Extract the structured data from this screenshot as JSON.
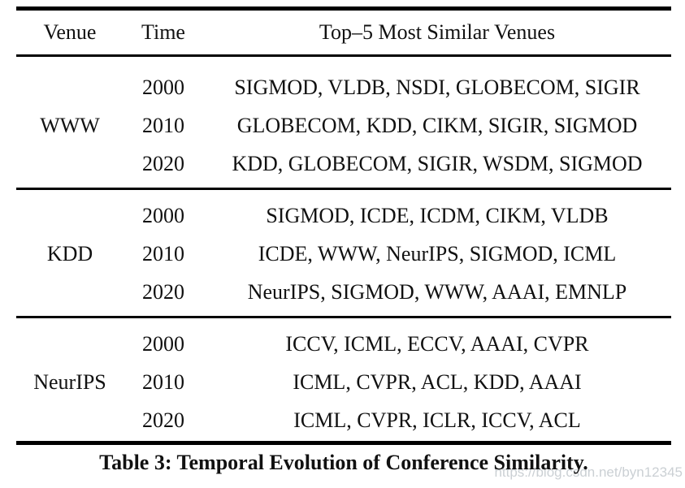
{
  "colors": {
    "background": "#ffffff",
    "text": "#111111",
    "rule": "#000000",
    "watermark": "#cbd0d4"
  },
  "table": {
    "headers": {
      "venue": "Venue",
      "time": "Time",
      "top5": "Top–5 Most Similar Venues"
    },
    "groups": [
      {
        "venue": "WWW",
        "rows": [
          {
            "time": "2000",
            "venues": "SIGMOD, VLDB, NSDI, GLOBECOM, SIGIR"
          },
          {
            "time": "2010",
            "venues": "GLOBECOM, KDD, CIKM, SIGIR, SIGMOD"
          },
          {
            "time": "2020",
            "venues": "KDD, GLOBECOM, SIGIR, WSDM, SIGMOD"
          }
        ]
      },
      {
        "venue": "KDD",
        "rows": [
          {
            "time": "2000",
            "venues": "SIGMOD, ICDE, ICDM, CIKM, VLDB"
          },
          {
            "time": "2010",
            "venues": "ICDE, WWW, NeurIPS, SIGMOD, ICML"
          },
          {
            "time": "2020",
            "venues": "NeurIPS, SIGMOD, WWW, AAAI, EMNLP"
          }
        ]
      },
      {
        "venue": "NeurIPS",
        "rows": [
          {
            "time": "2000",
            "venues": "ICCV, ICML, ECCV, AAAI, CVPR"
          },
          {
            "time": "2010",
            "venues": "ICML, CVPR, ACL, KDD, AAAI"
          },
          {
            "time": "2020",
            "venues": "ICML, CVPR, ICLR, ICCV, ACL"
          }
        ]
      }
    ],
    "caption": "Table 3: Temporal Evolution of Conference Similarity."
  },
  "watermark": {
    "text": "https://blog.csdn.net/byn12345"
  }
}
